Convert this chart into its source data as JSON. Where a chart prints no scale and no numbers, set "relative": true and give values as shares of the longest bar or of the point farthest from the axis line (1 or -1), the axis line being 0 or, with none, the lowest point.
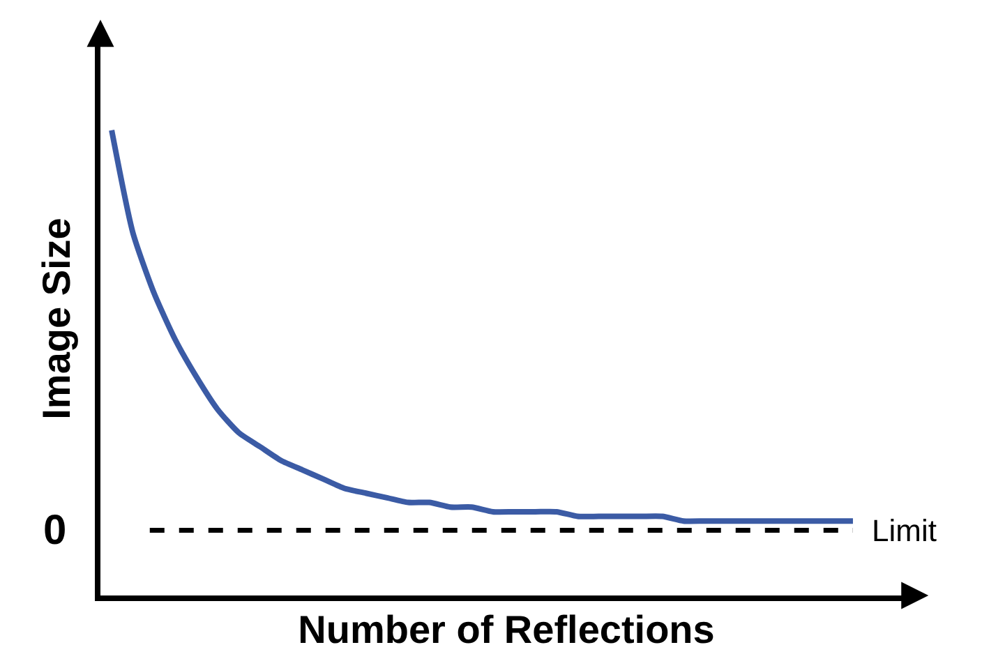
{
  "chart_data": {
    "type": "line",
    "relative": true,
    "xlabel": "Number of Reflections",
    "ylabel": "Image Size",
    "categories": [
      null,
      null,
      null,
      null,
      null,
      null,
      null,
      null,
      null,
      null,
      null,
      null,
      null,
      null,
      null,
      null,
      null,
      null,
      null,
      null,
      null,
      null,
      null,
      null,
      null,
      null,
      null,
      null,
      null,
      null,
      null,
      null,
      null,
      null,
      null,
      null
    ],
    "series": [
      {
        "color": "#3b5ba5",
        "values": [
          1,
          0.78,
          0.65,
          0.55,
          0.47,
          0.4,
          0.35,
          0.32,
          0.29,
          0.27,
          0.25,
          0.23,
          0.22,
          0.21,
          0.2,
          0.2,
          0.19,
          0.19,
          0.18,
          0.18,
          0.18,
          0.18,
          0.17,
          0.17,
          0.17,
          0.17,
          0.17,
          0.16,
          0.16,
          0.16,
          0.16,
          0.16,
          0.16,
          0.16,
          0.16,
          0.16
        ]
      }
    ],
    "ref_lines": [
      {
        "axis": "y",
        "value": 0.14,
        "label": "Limit",
        "color": "#000000",
        "line_style": "dashed"
      }
    ],
    "annotations": [
      "0"
    ],
    "marker": "none",
    "line_style": "solid"
  }
}
